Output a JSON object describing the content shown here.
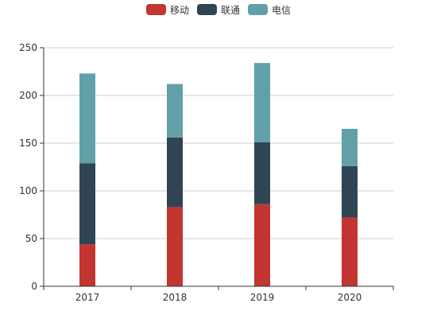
{
  "chart_data": {
    "type": "bar",
    "stacked": true,
    "categories": [
      "2017",
      "2018",
      "2019",
      "2020"
    ],
    "series": [
      {
        "name": "移动",
        "color": "#c23531",
        "values": [
          44,
          83,
          86,
          72
        ]
      },
      {
        "name": "联通",
        "color": "#2f4554",
        "values": [
          85,
          73,
          65,
          54
        ]
      },
      {
        "name": "电信",
        "color": "#61a0a8",
        "values": [
          94,
          56,
          83,
          39
        ]
      }
    ],
    "y_ticks": [
      "0",
      "50",
      "100",
      "150",
      "200",
      "250"
    ],
    "ylim": [
      0,
      250
    ],
    "grid": true,
    "legend_position": "top-center"
  }
}
